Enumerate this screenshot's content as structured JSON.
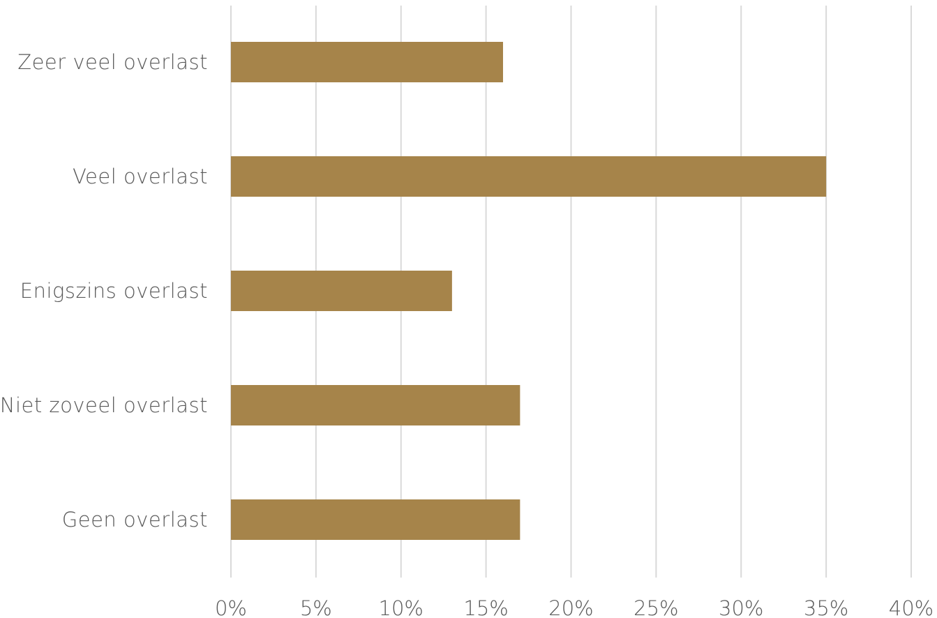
{
  "chart_data": {
    "type": "bar",
    "orientation": "horizontal",
    "categories": [
      "Zeer veel overlast",
      "Veel overlast",
      "Enigszins overlast",
      "Niet zoveel overlast",
      "Geen overlast"
    ],
    "values": [
      16,
      35,
      13,
      17,
      17
    ],
    "value_unit": "%",
    "xlim": [
      0,
      40
    ],
    "xticks": [
      0,
      5,
      10,
      15,
      20,
      25,
      30,
      35,
      40
    ],
    "xtick_labels": [
      "0%",
      "5%",
      "10%",
      "15%",
      "20%",
      "25%",
      "30%",
      "35%",
      "40%"
    ],
    "title": "",
    "xlabel": "",
    "ylabel": "",
    "grid": "vertical",
    "legend": "none",
    "bar_color": "#a6844a",
    "grid_color": "#d9d9d9",
    "text_color": "#595959"
  }
}
